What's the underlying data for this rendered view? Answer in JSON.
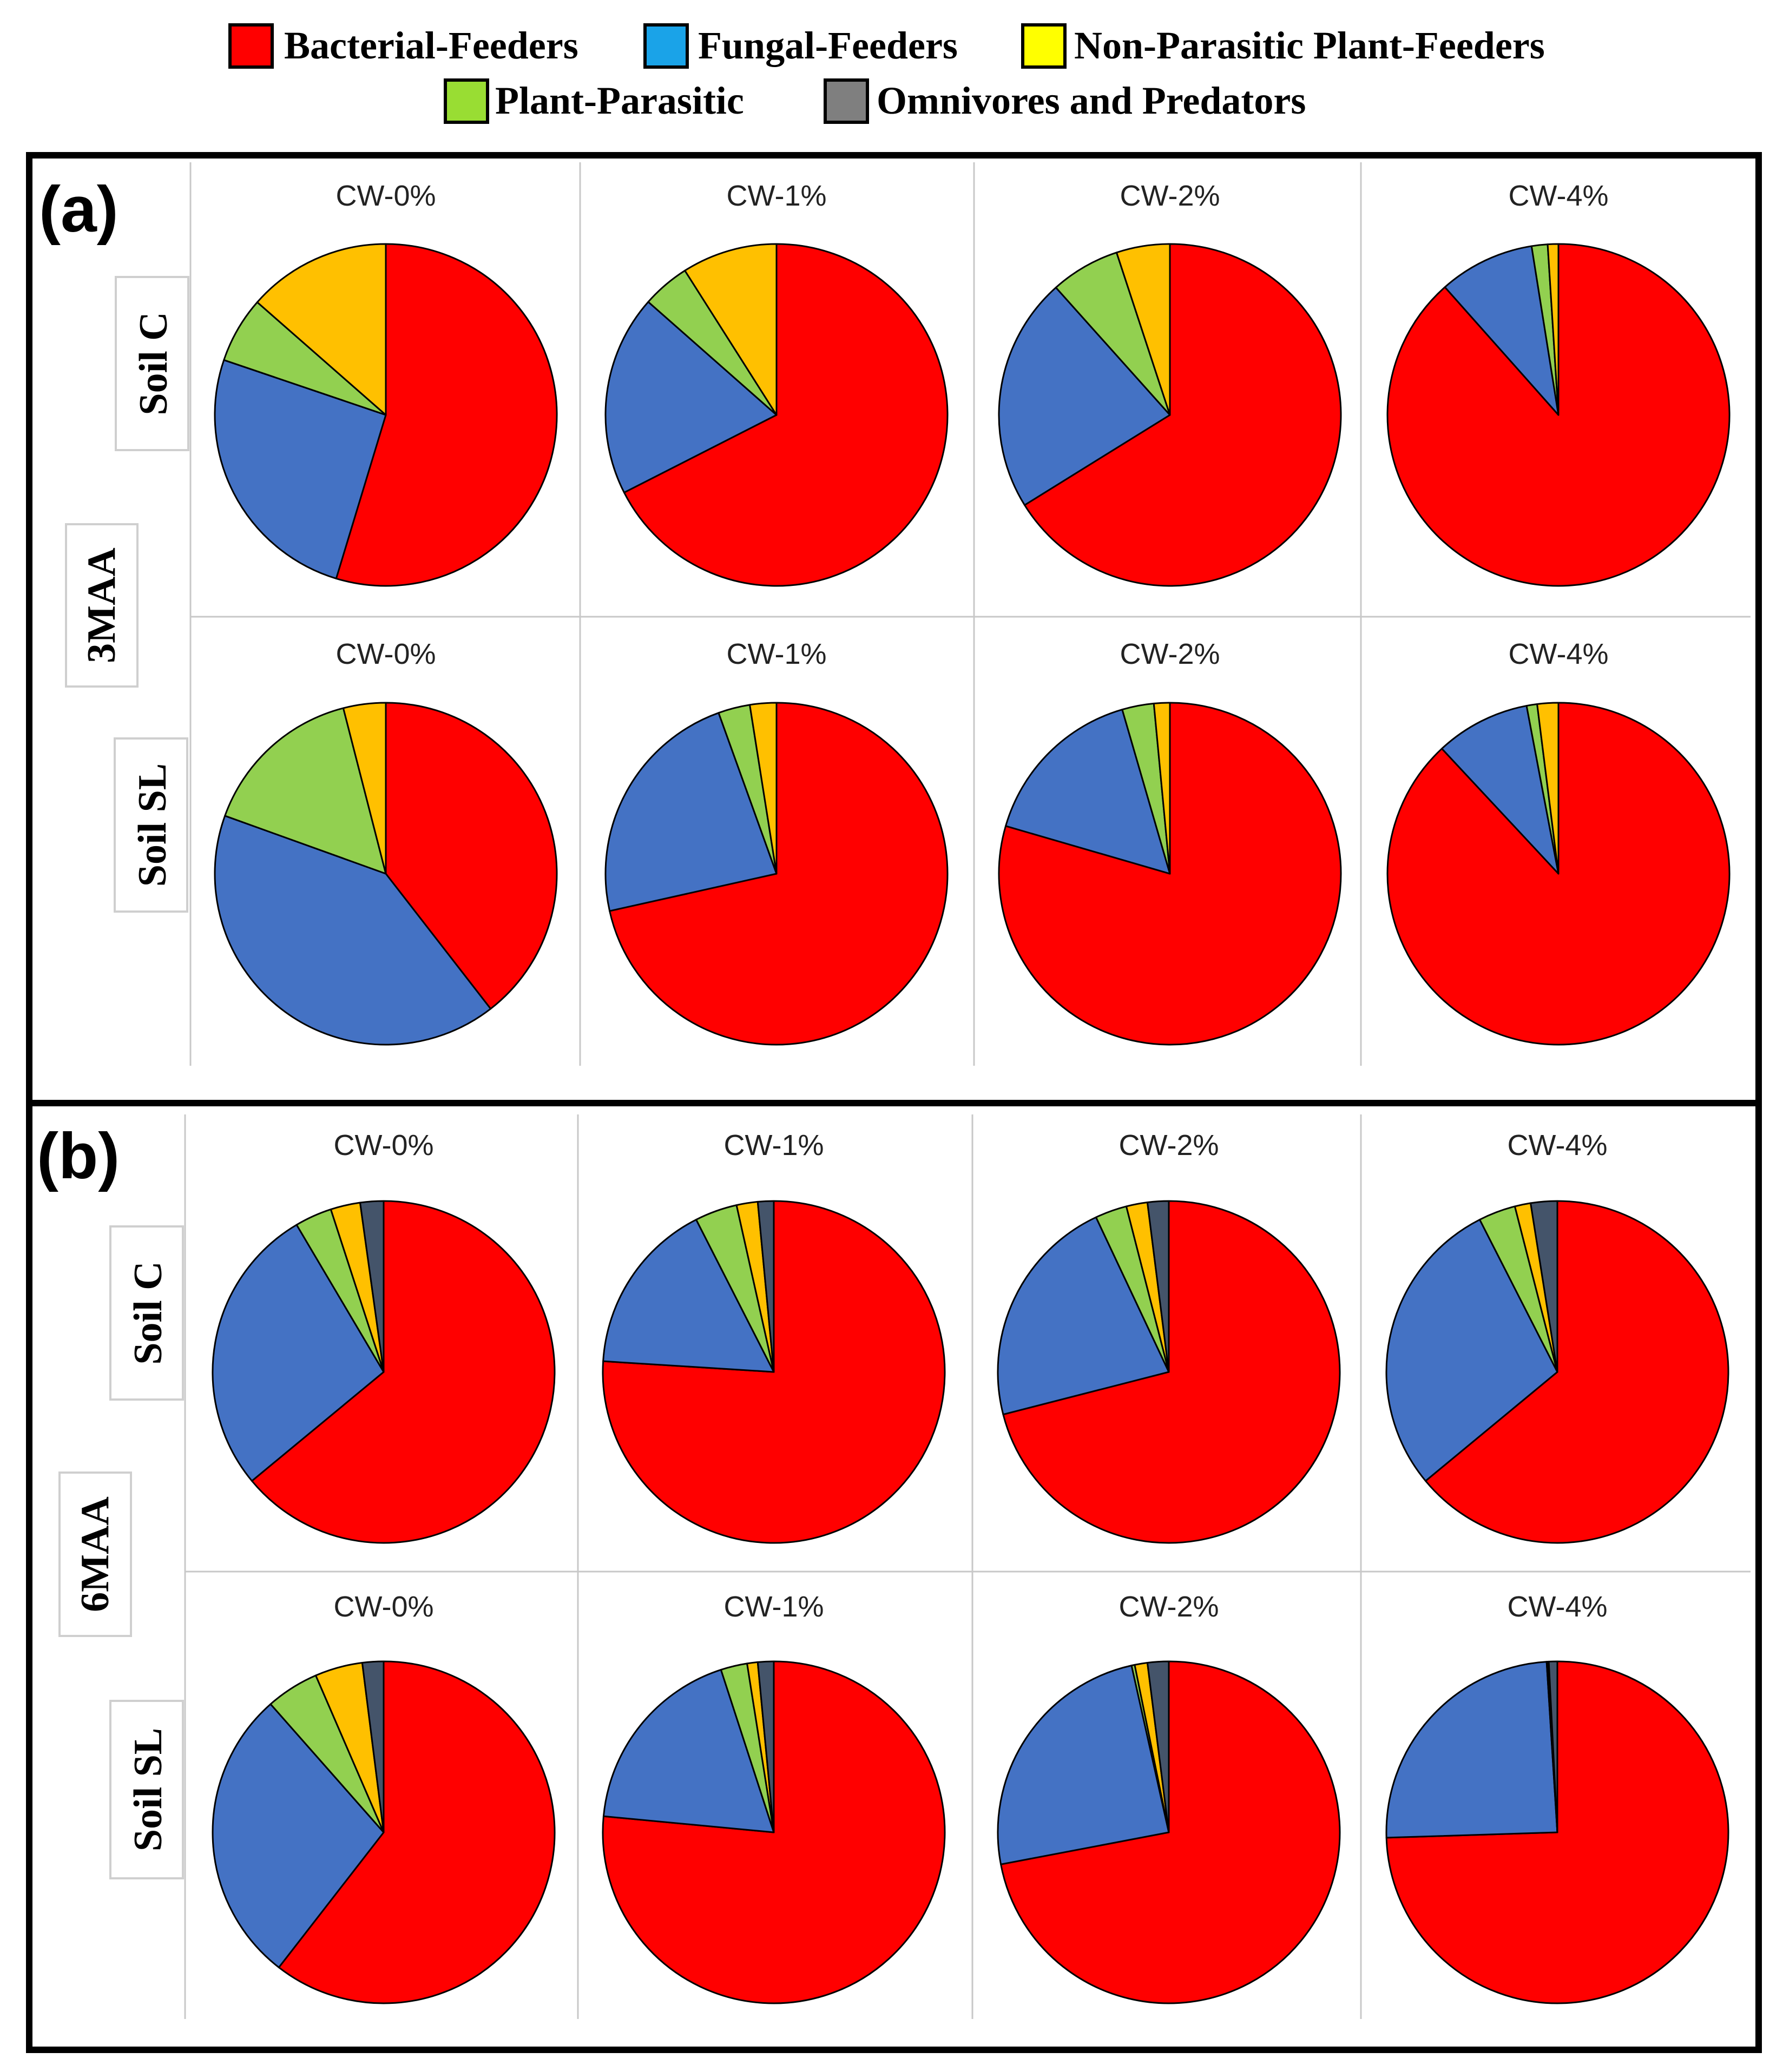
{
  "legend": {
    "items": [
      {
        "key": "bacterial",
        "label": "Bacterial-Feeders",
        "color": "#ff0000"
      },
      {
        "key": "fungal",
        "label": "Fungal-Feeders",
        "color": "#1aa3e8"
      },
      {
        "key": "nonparasitic",
        "label": "Non-Parasitic Plant-Feeders",
        "color": "#ffff00"
      },
      {
        "key": "plantparasitic",
        "label": "Plant-Parasitic",
        "color": "#99dd33"
      },
      {
        "key": "omnivores",
        "label": "Omnivores and Predators",
        "color": "#7f7f7f"
      }
    ]
  },
  "slice_colors": {
    "bacterial": "#ff0000",
    "fungal": "#4472c4",
    "plantparasitic": "#92d050",
    "nonparasitic": "#ffc000",
    "omnivores": "#44546a"
  },
  "chart_data": {
    "type": "pie",
    "categories": [
      "Bacterial-Feeders",
      "Fungal-Feeders",
      "Plant-Parasitic",
      "Non-Parasitic Plant-Feeders",
      "Omnivores and Predators"
    ],
    "category_keys": [
      "bacterial",
      "fungal",
      "plantparasitic",
      "nonparasitic",
      "omnivores"
    ],
    "panels": [
      {
        "label": "(a)",
        "time_label": "3MAA",
        "rows": [
          {
            "soil": "Soil C",
            "charts": [
              {
                "title": "CW-0%",
                "values": [
                  52.5,
                  24.5,
                  6.0,
                  13.0,
                  0
                ]
              },
              {
                "title": "CW-1%",
                "values": [
                  67.5,
                  19.0,
                  4.5,
                  9.0,
                  0
                ]
              },
              {
                "title": "CW-2%",
                "values": [
                  65.5,
                  22.0,
                  6.5,
                  5.0,
                  0
                ]
              },
              {
                "title": "CW-4%",
                "values": [
                  88.0,
                  9.0,
                  1.5,
                  1.0,
                  0
                ]
              }
            ]
          },
          {
            "soil": "Soil SL",
            "charts": [
              {
                "title": "CW-0%",
                "values": [
                  39.5,
                  41.0,
                  15.5,
                  4.0,
                  0
                ]
              },
              {
                "title": "CW-1%",
                "values": [
                  71.5,
                  23.0,
                  3.0,
                  2.5,
                  0
                ]
              },
              {
                "title": "CW-2%",
                "values": [
                  79.5,
                  16.0,
                  3.0,
                  1.5,
                  0
                ]
              },
              {
                "title": "CW-4%",
                "values": [
                  88.5,
                  9.0,
                  1.0,
                  2.0,
                  0
                ]
              }
            ]
          }
        ]
      },
      {
        "label": "(b)",
        "time_label": "6MAA",
        "rows": [
          {
            "soil": "Soil C",
            "charts": [
              {
                "title": "CW-0%",
                "values": [
                  64.0,
                  27.5,
                  3.5,
                  2.8,
                  2.2
                ]
              },
              {
                "title": "CW-1%",
                "values": [
                  76.0,
                  16.5,
                  4.0,
                  2.0,
                  1.5
                ]
              },
              {
                "title": "CW-2%",
                "values": [
                  71.0,
                  22.0,
                  3.0,
                  2.0,
                  2.0
                ]
              },
              {
                "title": "CW-4%",
                "values": [
                  64.0,
                  28.5,
                  3.5,
                  1.5,
                  2.5
                ]
              }
            ]
          },
          {
            "soil": "Soil SL",
            "charts": [
              {
                "title": "CW-0%",
                "values": [
                  60.5,
                  28.0,
                  5.0,
                  4.5,
                  2.0
                ]
              },
              {
                "title": "CW-1%",
                "values": [
                  76.5,
                  18.5,
                  2.5,
                  1.0,
                  1.5
                ]
              },
              {
                "title": "CW-2%",
                "values": [
                  72.0,
                  24.5,
                  0.3,
                  1.2,
                  2.0
                ]
              },
              {
                "title": "CW-4%",
                "values": [
                  74.5,
                  24.5,
                  0.1,
                  0.1,
                  0.8
                ]
              }
            ]
          }
        ]
      }
    ]
  }
}
